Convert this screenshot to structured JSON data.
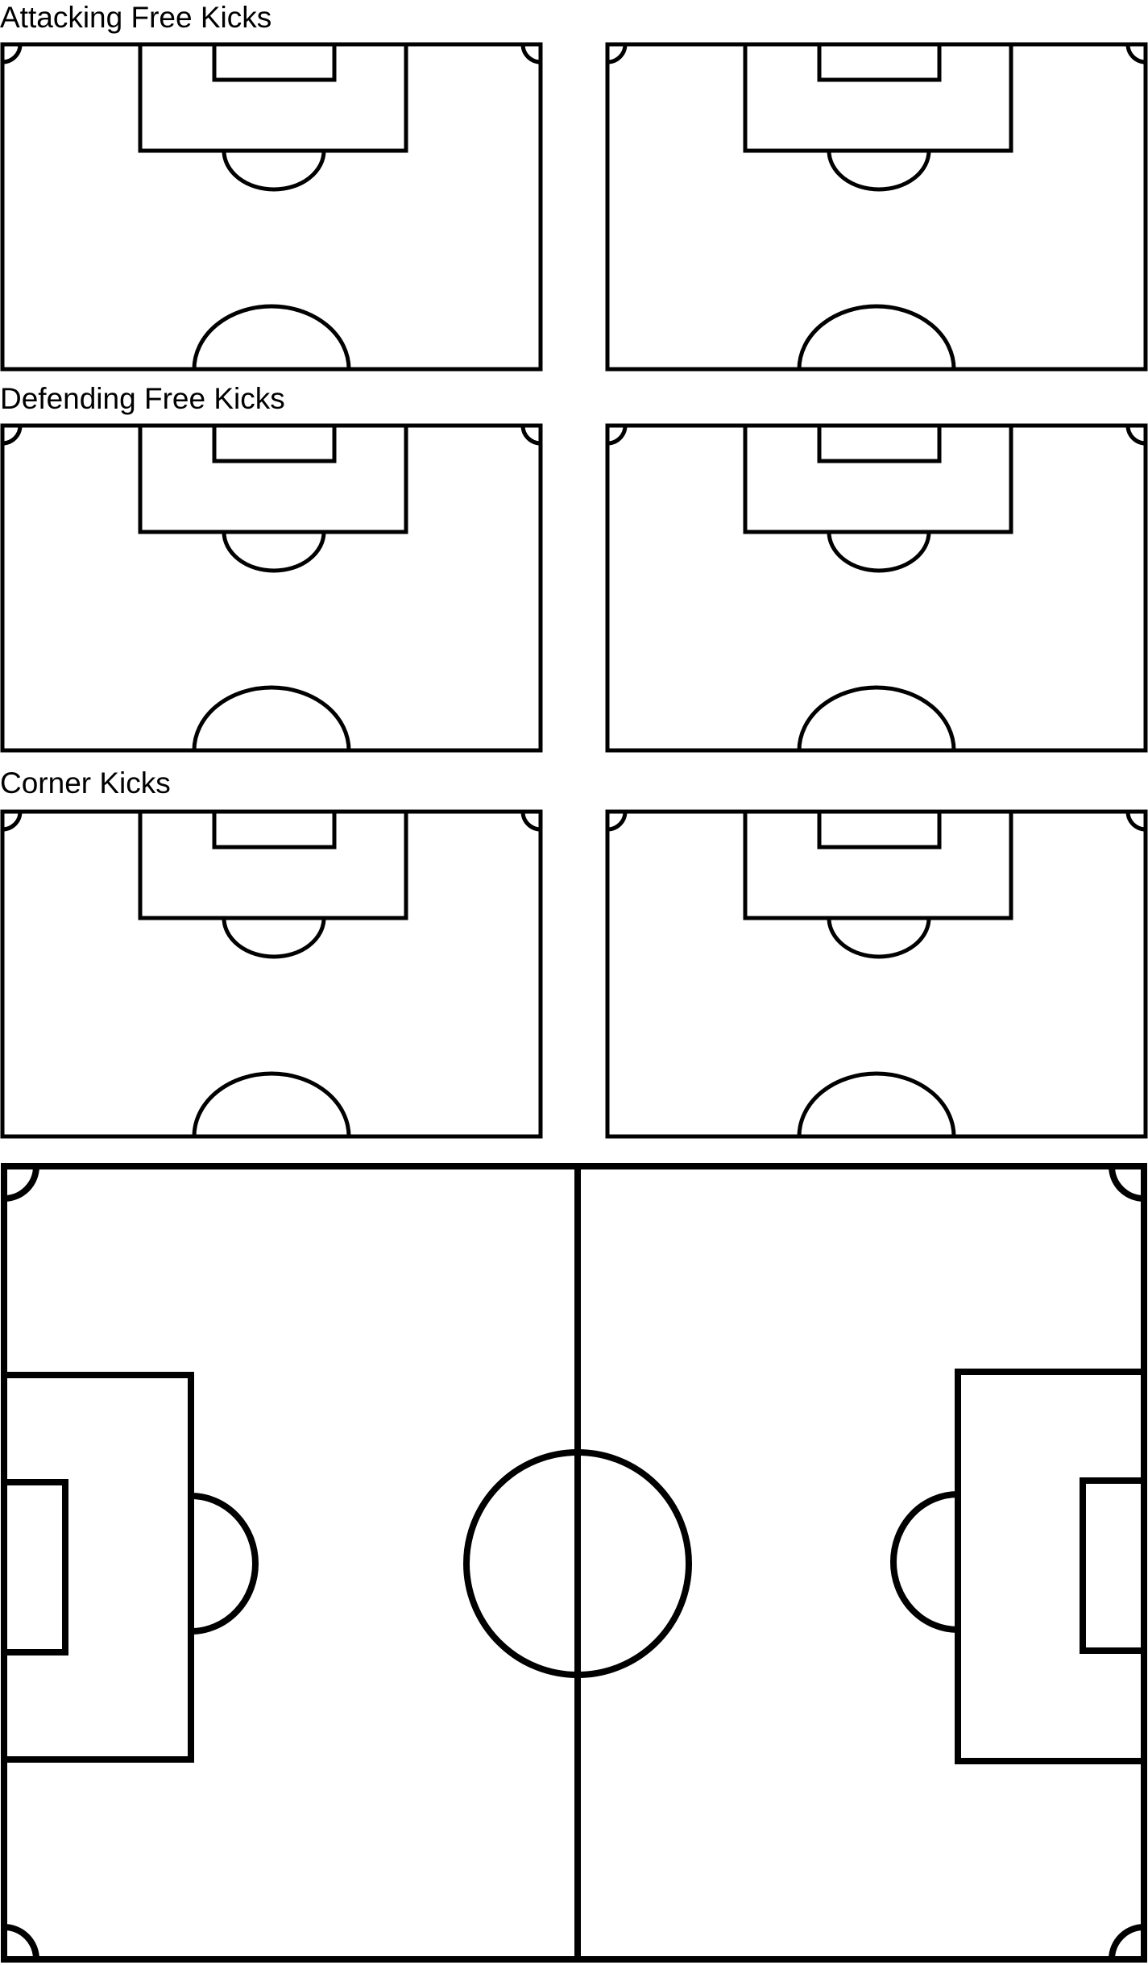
{
  "sections": [
    {
      "title": "Attacking Free Kicks"
    },
    {
      "title": "Defending Free Kicks"
    },
    {
      "title": "Corner Kicks"
    }
  ],
  "colors": {
    "background": "#ffffff",
    "line": "#000000"
  }
}
